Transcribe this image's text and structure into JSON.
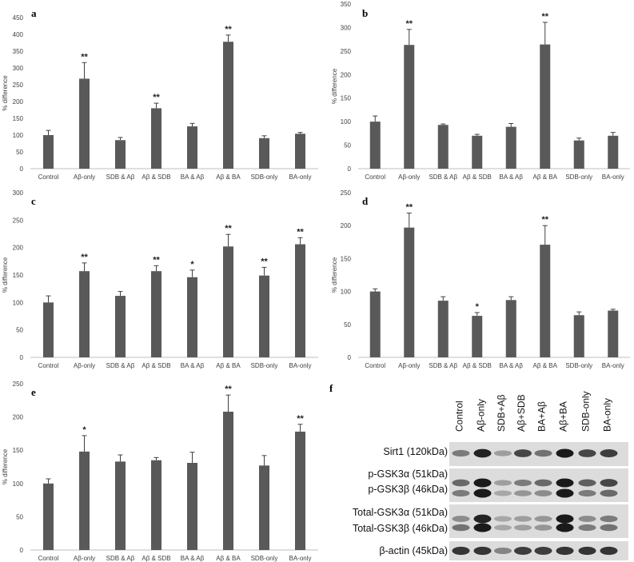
{
  "chart_data": [
    {
      "panel": "a",
      "type": "bar",
      "categories": [
        "Control",
        "Aβ-only",
        "SDB & Aβ",
        "Aβ & SDB",
        "BA & Aβ",
        "Aβ & BA",
        "SDB-only",
        "BA-only"
      ],
      "values": [
        100,
        268,
        85,
        180,
        126,
        378,
        91,
        104
      ],
      "errors": [
        14,
        48,
        8,
        15,
        9,
        20,
        7,
        4
      ],
      "significance": [
        "",
        "**",
        "",
        "**",
        "",
        "**",
        "",
        ""
      ],
      "ylabel": "% difference",
      "ylim": [
        0,
        450
      ],
      "yticks": [
        0,
        50,
        100,
        150,
        200,
        250,
        300,
        350,
        400,
        450
      ],
      "bar_color": "#595959"
    },
    {
      "panel": "b",
      "type": "bar",
      "categories": [
        "Control",
        "Aβ-only",
        "SDB & Aβ",
        "Aβ & SDB",
        "BA & Aβ",
        "Aβ & BA",
        "SDB-only",
        "BA-only"
      ],
      "values": [
        100,
        263,
        93,
        70,
        89,
        264,
        60,
        70
      ],
      "errors": [
        12,
        33,
        2,
        3,
        7,
        47,
        5,
        7
      ],
      "significance": [
        "",
        "**",
        "",
        "",
        "",
        "**",
        "",
        ""
      ],
      "ylabel": "% difference",
      "ylim": [
        0,
        350
      ],
      "yticks": [
        0,
        50,
        100,
        150,
        200,
        250,
        300,
        350
      ],
      "bar_color": "#595959"
    },
    {
      "panel": "c",
      "type": "bar",
      "categories": [
        "Control",
        "Aβ-only",
        "SDB & Aβ",
        "Aβ & SDB",
        "BA & Aβ",
        "Aβ & BA",
        "SDB-only",
        "BA-only"
      ],
      "values": [
        100,
        157,
        112,
        157,
        146,
        202,
        149,
        206
      ],
      "errors": [
        12,
        15,
        8,
        10,
        13,
        22,
        15,
        12
      ],
      "significance": [
        "",
        "**",
        "",
        "**",
        "*",
        "**",
        "**",
        "**"
      ],
      "ylabel": "% difference",
      "ylim": [
        0,
        300
      ],
      "yticks": [
        0,
        50,
        100,
        150,
        200,
        250,
        300
      ],
      "bar_color": "#595959"
    },
    {
      "panel": "d",
      "type": "bar",
      "categories": [
        "Control",
        "Aβ-only",
        "SDB & Aβ",
        "Aβ & SDB",
        "BA & Aβ",
        "Aβ & BA",
        "SDB-only",
        "BA-only"
      ],
      "values": [
        100,
        197,
        86,
        63,
        87,
        171,
        64,
        71
      ],
      "errors": [
        4,
        22,
        6,
        5,
        5,
        29,
        5,
        2
      ],
      "significance": [
        "",
        "**",
        "",
        "*",
        "",
        "**",
        "",
        ""
      ],
      "ylabel": "% difference",
      "ylim": [
        0,
        250
      ],
      "yticks": [
        0,
        50,
        100,
        150,
        200,
        250
      ],
      "bar_color": "#595959"
    },
    {
      "panel": "e",
      "type": "bar",
      "categories": [
        "Control",
        "Aβ-only",
        "SDB & Aβ",
        "Aβ & SDB",
        "BA & Aβ",
        "Aβ & BA",
        "SDB-only",
        "BA-only"
      ],
      "values": [
        100,
        148,
        133,
        135,
        131,
        208,
        127,
        178
      ],
      "errors": [
        7,
        24,
        10,
        4,
        16,
        25,
        15,
        11
      ],
      "significance": [
        "",
        "*",
        "",
        "",
        "",
        "**",
        "",
        "**"
      ],
      "ylabel": "% difference",
      "ylim": [
        0,
        250
      ],
      "yticks": [
        0,
        50,
        100,
        150,
        200,
        250
      ],
      "bar_color": "#595959"
    }
  ],
  "blot": {
    "panel": "f",
    "lanes": [
      "Control",
      "Aβ-only",
      "SDB+Aβ",
      "Aβ+SDB",
      "BA+Aβ",
      "Aβ+BA",
      "SDB-only",
      "BA-only"
    ],
    "proteins": [
      "Sirt1 (120kDa)",
      "p-GSK3α (51kDa)",
      "p-GSK3β (46kDa)",
      "Total-GSK3α (51kDa)",
      "Total-GSK3β (46kDa)",
      "β-actin (45kDa)"
    ]
  }
}
